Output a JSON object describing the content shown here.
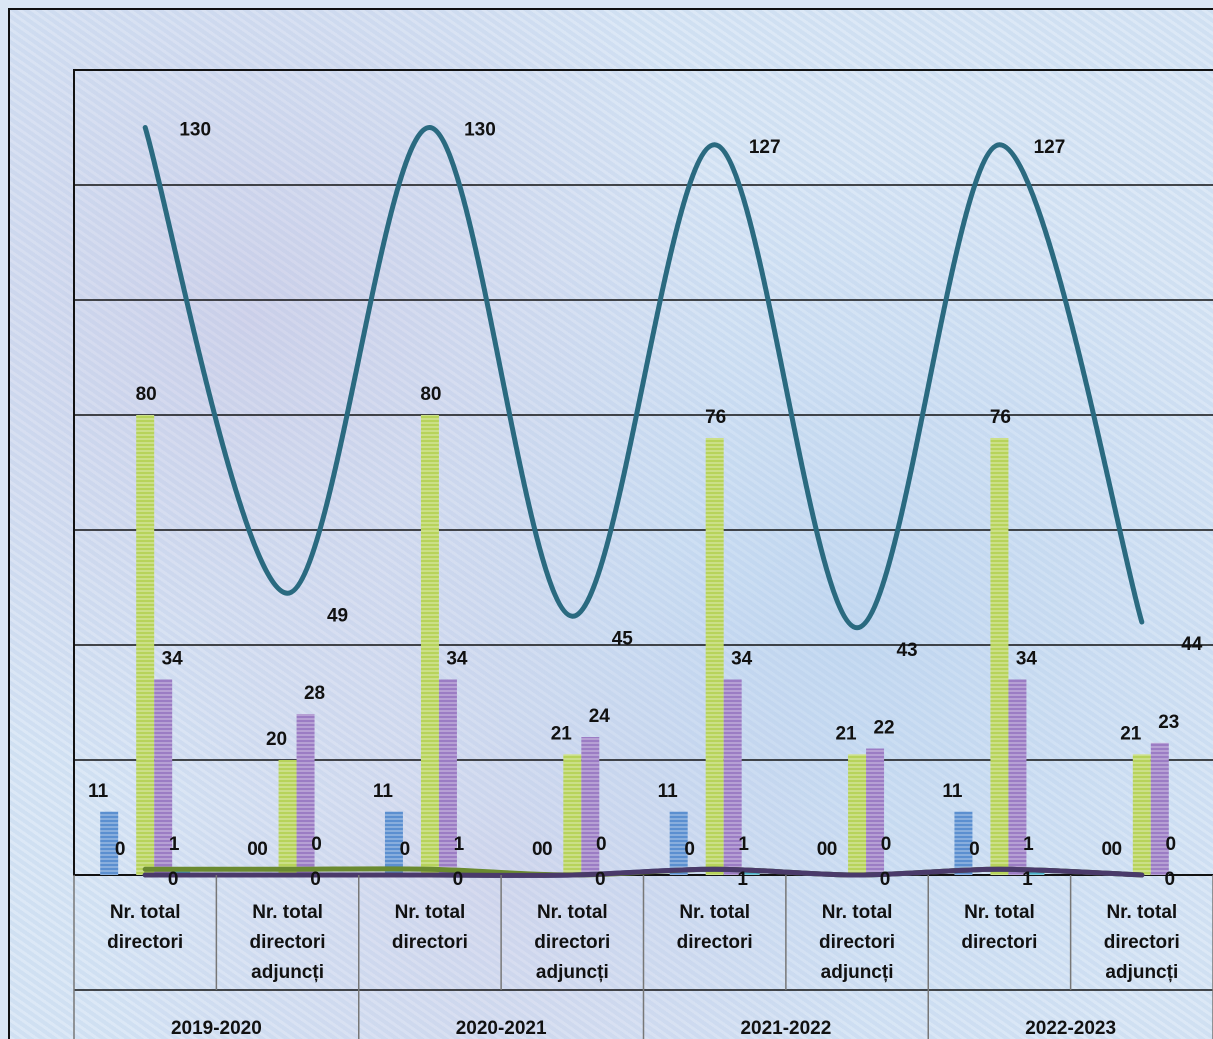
{
  "chart_data": {
    "type": "bar",
    "title": "",
    "xlabel": "",
    "ylabel": "",
    "ylim": [
      0,
      140
    ],
    "grid": true,
    "legend": "none",
    "groups": [
      "2019-2020",
      "2020-2021",
      "2021-2022",
      "2022-2023"
    ],
    "categories": [
      "Nr. total directori",
      "Nr. total directori adjuncți"
    ],
    "category_lines": [
      [
        "Nr. total",
        "directori"
      ],
      [
        "Nr. total",
        "directori",
        "adjuncți"
      ]
    ],
    "bar_series": [
      {
        "color": "#5b8fd0",
        "values": [
          11,
          0,
          11,
          0,
          11,
          0,
          11,
          0
        ]
      },
      {
        "color": "#3a5c9a",
        "values": [
          0,
          0,
          0,
          0,
          0,
          0,
          0,
          0
        ]
      },
      {
        "color": "#b7d35a",
        "values": [
          80,
          20,
          80,
          21,
          76,
          21,
          76,
          21
        ]
      },
      {
        "color": "#9b7cc4",
        "values": [
          34,
          28,
          34,
          24,
          34,
          22,
          34,
          23
        ]
      },
      {
        "color": "#4bb0c8",
        "values": [
          1,
          0,
          1,
          0,
          1,
          0,
          1,
          0
        ]
      }
    ],
    "line_series": [
      {
        "color": "#2a6a80",
        "values": [
          130,
          49,
          130,
          45,
          127,
          43,
          127,
          44
        ]
      },
      {
        "color": "#3f5f8a",
        "values": [
          0,
          0,
          0,
          0,
          1,
          0,
          1,
          0
        ]
      },
      {
        "color": "#6a8a30",
        "values": [
          1,
          1,
          1,
          0,
          1,
          0,
          1,
          0
        ]
      },
      {
        "color": "#4a3a6a",
        "values": [
          0,
          0,
          0,
          0,
          1,
          0,
          1,
          0
        ]
      }
    ],
    "line_labels": [
      "130",
      "49",
      "130",
      "45",
      "127",
      "43",
      "127",
      "44"
    ],
    "bottom_labels": [
      "0",
      "0",
      "0",
      "0",
      "1",
      "0",
      "1",
      "0"
    ]
  }
}
